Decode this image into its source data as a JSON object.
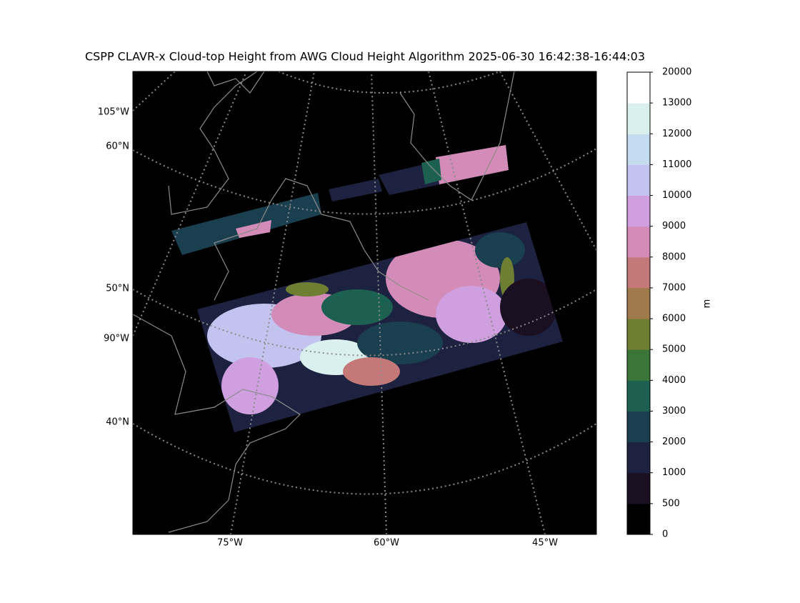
{
  "title": "CSPP CLAVR-x Cloud-top Height from AWG Cloud Height Algorithm 2025-06-30 16:42:38-16:44:03",
  "map": {
    "lat_labels": [
      "60°N",
      "50°N",
      "40°N"
    ],
    "lon_labels_left": [
      "105°W",
      "90°W"
    ],
    "lon_labels_bottom": [
      "75°W",
      "60°W",
      "45°W"
    ]
  },
  "colorbar": {
    "label": "m",
    "ticks": [
      0,
      500,
      1000,
      2000,
      3000,
      4000,
      5000,
      6000,
      7000,
      8000,
      9000,
      10000,
      11000,
      12000,
      13000,
      20000
    ],
    "colors": [
      "#000000",
      "#1b0f22",
      "#1d2240",
      "#1a3f4e",
      "#1b6050",
      "#3a7638",
      "#6e7e33",
      "#a07a4a",
      "#c57878",
      "#d38bb8",
      "#cf9fe0",
      "#c3c3f0",
      "#c5dcf0",
      "#daf0ee",
      "#ffffff"
    ]
  }
}
